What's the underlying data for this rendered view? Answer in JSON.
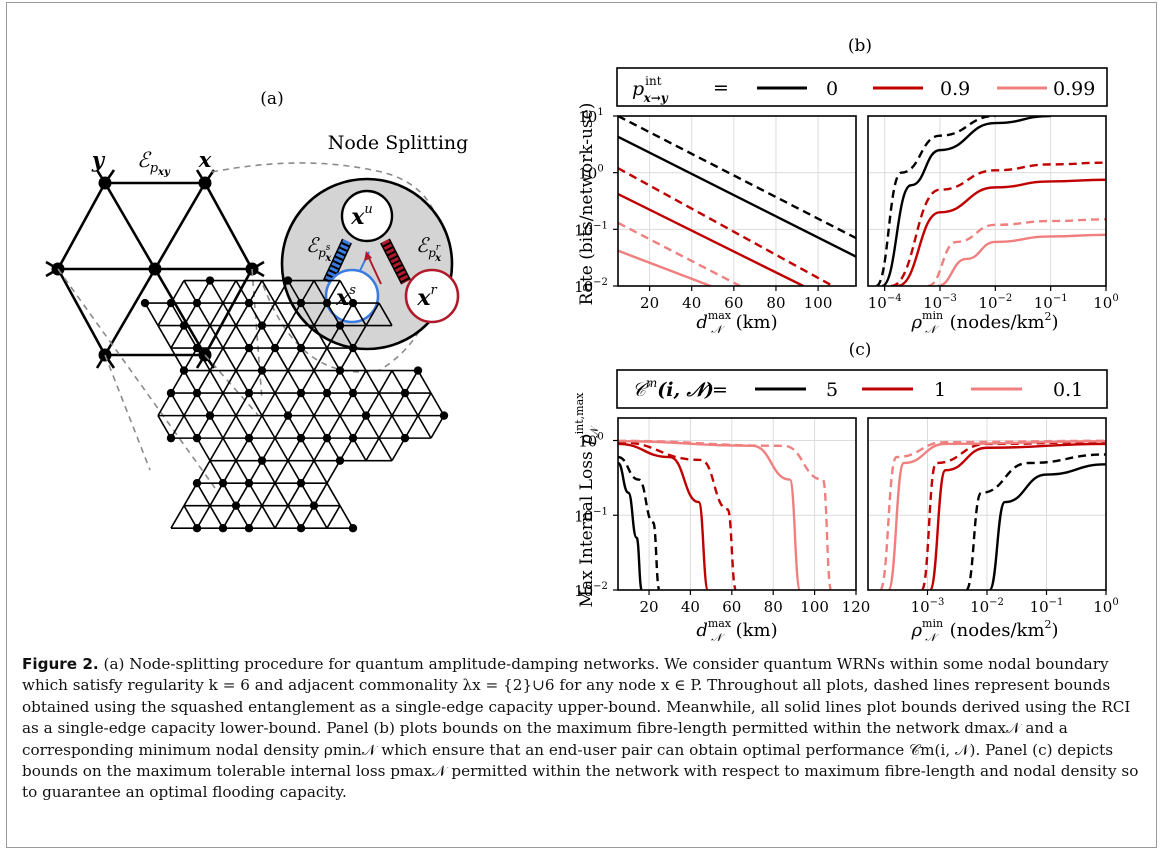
{
  "figure": {
    "panel_a": {
      "label": "(a)",
      "node_splitting_title": "Node Splitting",
      "node_y": "y",
      "edge_label": "ℰ",
      "edge_sub": "p",
      "edge_subsub": "xy",
      "node_x": "x",
      "x_u_base": "x",
      "x_u_sup": "u",
      "x_s_base": "x",
      "x_s_sup": "s",
      "x_r_base": "x",
      "x_r_sup": "r",
      "eps_s": "ℰ",
      "eps_s_sub": "p",
      "eps_s_subsup": "s",
      "eps_s_subsub": "x",
      "eps_r": "ℰ",
      "eps_r_sub": "p",
      "eps_r_subsup": "r",
      "eps_r_subsub": "x"
    },
    "panel_b": {
      "label": "(b)",
      "legend_symbol": "p",
      "legend_sup": "int",
      "legend_sub": "x→y",
      "legend_eq": "=",
      "legend_values": [
        "0",
        "0.9",
        "0.99"
      ],
      "ylabel": "Rate (bits/network-use)",
      "left_xlabel_sym": "d",
      "left_xlabel_sup": "max",
      "left_xlabel_sub": "𝒩",
      "left_xlabel_unit": "(km)",
      "right_xlabel_sym": "ρ",
      "right_xlabel_sup": "min",
      "right_xlabel_sub": "𝒩",
      "right_xlabel_unit": "(nodes/km",
      "right_xlabel_unit_sup": "2",
      "right_xlabel_unit_end": ")",
      "left_xticks": [
        "20",
        "40",
        "60",
        "80",
        "100"
      ],
      "y_ticks": [
        {
          "base": "10",
          "exp": "1"
        },
        {
          "base": "10",
          "exp": "0"
        },
        {
          "base": "10",
          "exp": "−1"
        },
        {
          "base": "10",
          "exp": "−2"
        }
      ],
      "right_xticks": [
        {
          "base": "10",
          "exp": "−4"
        },
        {
          "base": "10",
          "exp": "−3"
        },
        {
          "base": "10",
          "exp": "−2"
        },
        {
          "base": "10",
          "exp": "−1"
        },
        {
          "base": "10",
          "exp": "0"
        }
      ]
    },
    "panel_c": {
      "label": "(c)",
      "legend_symbol": "𝒞",
      "legend_sup": "m",
      "legend_args": "(i, 𝒩)",
      "legend_eq": "=",
      "legend_values": [
        "5",
        "1",
        "0.1"
      ],
      "ylabel": "Max Internal Loss",
      "ylabel_sym": "p",
      "ylabel_sup": "int,max",
      "ylabel_sub": "𝒩",
      "left_xlabel_sym": "d",
      "left_xlabel_sup": "max",
      "left_xlabel_sub": "𝒩",
      "left_xlabel_unit": "(km)",
      "right_xlabel_sym": "ρ",
      "right_xlabel_sup": "min",
      "right_xlabel_sub": "𝒩",
      "right_xlabel_unit": "(nodes/km",
      "right_xlabel_unit_sup": "2",
      "right_xlabel_unit_end": ")",
      "left_xticks": [
        "20",
        "40",
        "60",
        "80",
        "100",
        "120"
      ],
      "y_ticks": [
        {
          "base": "10",
          "exp": "0"
        },
        {
          "base": "10",
          "exp": "−1"
        },
        {
          "base": "10",
          "exp": "−2"
        }
      ],
      "right_xticks": [
        {
          "base": "10",
          "exp": "−3"
        },
        {
          "base": "10",
          "exp": "−2"
        },
        {
          "base": "10",
          "exp": "−1"
        },
        {
          "base": "10",
          "exp": "0"
        }
      ]
    },
    "colors": {
      "series_0": "#000000",
      "series_1": "#c00000",
      "series_2": "#f07f7f",
      "node_u_fill": "#ffffff",
      "node_s_stroke": "#3b7be0",
      "node_r_stroke": "#b01a2a",
      "split_bg": "#d4d4d4"
    }
  },
  "caption": {
    "lead": "Figure 2.",
    "text": "(a) Node-splitting procedure for quantum amplitude-damping networks. We consider quantum WRNs within some nodal boundary which satisfy regularity k = 6 and adjacent commonality λx = {2}∪6 for any node x ∈ P. Throughout all plots, dashed lines represent bounds obtained using the squashed entanglement as a single-edge capacity upper-bound. Meanwhile, all solid lines plot bounds derived using the RCI as a single-edge capacity lower-bound. Panel (b) plots bounds on the maximum fibre-length permitted within the network dmax𝒩 and a corresponding minimum nodal density ρmin𝒩 which ensure that an end-user pair can obtain optimal performance 𝒞m(i, 𝒩). Panel (c) depicts bounds on the maximum tolerable internal loss pmax𝒩 permitted within the network with respect to maximum fibre-length and nodal density so to guarantee an optimal flooding capacity."
  },
  "chart_data": [
    {
      "type": "line",
      "panel": "(b) left",
      "xlabel": "d_N^max (km)",
      "ylabel": "Rate (bits/network-use)",
      "log_y": true,
      "xlim": [
        5,
        118
      ],
      "ylim": [
        0.01,
        10
      ],
      "grid": true,
      "series": [
        {
          "name": "0",
          "style": "solid",
          "x": [
            5,
            118
          ],
          "y": [
            4.3,
            0.033
          ]
        },
        {
          "name": "0",
          "style": "dashed",
          "x": [
            5,
            118
          ],
          "y": [
            10,
            0.07
          ]
        },
        {
          "name": "0.9",
          "style": "solid",
          "x": [
            5,
            93
          ],
          "y": [
            0.42,
            0.01
          ]
        },
        {
          "name": "0.9",
          "style": "dashed",
          "x": [
            5,
            107
          ],
          "y": [
            1.2,
            0.01
          ]
        },
        {
          "name": "0.99",
          "style": "solid",
          "x": [
            5,
            49
          ],
          "y": [
            0.042,
            0.01
          ]
        },
        {
          "name": "0.99",
          "style": "dashed",
          "x": [
            5,
            63
          ],
          "y": [
            0.13,
            0.01
          ]
        }
      ]
    },
    {
      "type": "line",
      "panel": "(b) right",
      "xlabel": "rho_N^min (nodes/km^2)",
      "log_x": true,
      "log_y": true,
      "xlim": [
        5e-05,
        1
      ],
      "ylim": [
        0.01,
        10
      ],
      "grid": true,
      "series": [
        {
          "name": "0",
          "style": "solid",
          "x": [
            9e-05,
            0.0003,
            0.001,
            0.01,
            0.1
          ],
          "y": [
            0.01,
            0.6,
            2.5,
            7.5,
            10
          ]
        },
        {
          "name": "0",
          "style": "dashed",
          "x": [
            7e-05,
            0.0002,
            0.001,
            0.01
          ],
          "y": [
            0.01,
            1.0,
            4.5,
            10
          ]
        },
        {
          "name": "0.9",
          "style": "solid",
          "x": [
            0.00017,
            0.001,
            0.01,
            0.1,
            1
          ],
          "y": [
            0.01,
            0.2,
            0.55,
            0.7,
            0.75
          ]
        },
        {
          "name": "0.9",
          "style": "dashed",
          "x": [
            0.00013,
            0.001,
            0.01,
            0.1,
            1
          ],
          "y": [
            0.01,
            0.5,
            1.1,
            1.4,
            1.5
          ]
        },
        {
          "name": "0.99",
          "style": "solid",
          "x": [
            0.0009,
            0.003,
            0.01,
            0.1,
            1
          ],
          "y": [
            0.01,
            0.03,
            0.06,
            0.075,
            0.08
          ]
        },
        {
          "name": "0.99",
          "style": "dashed",
          "x": [
            0.0006,
            0.002,
            0.01,
            0.1,
            1
          ],
          "y": [
            0.01,
            0.06,
            0.12,
            0.14,
            0.15
          ]
        }
      ]
    },
    {
      "type": "line",
      "panel": "(c) left",
      "xlabel": "d_N^max (km)",
      "ylabel": "Max Internal Loss p_N^int,max",
      "log_y": true,
      "xlim": [
        5,
        120
      ],
      "ylim": [
        0.01,
        2
      ],
      "grid": true,
      "series": [
        {
          "name": "5",
          "style": "solid",
          "x": [
            5,
            10,
            14,
            16.5
          ],
          "y": [
            0.5,
            0.2,
            0.05,
            0.01
          ]
        },
        {
          "name": "5",
          "style": "dashed",
          "x": [
            5,
            15,
            22,
            25
          ],
          "y": [
            0.6,
            0.3,
            0.08,
            0.01
          ]
        },
        {
          "name": "1",
          "style": "solid",
          "x": [
            5,
            30,
            44,
            48.5
          ],
          "y": [
            0.9,
            0.6,
            0.15,
            0.01
          ]
        },
        {
          "name": "1",
          "style": "dashed",
          "x": [
            5,
            45,
            58,
            62
          ],
          "y": [
            0.95,
            0.55,
            0.12,
            0.01
          ]
        },
        {
          "name": "0.1",
          "style": "solid",
          "x": [
            5,
            70,
            88,
            93
          ],
          "y": [
            0.98,
            0.85,
            0.3,
            0.01
          ]
        },
        {
          "name": "0.1",
          "style": "dashed",
          "x": [
            5,
            85,
            104,
            108
          ],
          "y": [
            0.99,
            0.85,
            0.3,
            0.01
          ]
        }
      ]
    },
    {
      "type": "line",
      "panel": "(c) right",
      "xlabel": "rho_N^min (nodes/km^2)",
      "log_x": true,
      "log_y": true,
      "xlim": [
        0.0001,
        1
      ],
      "ylim": [
        0.01,
        2
      ],
      "grid": true,
      "series": [
        {
          "name": "5",
          "style": "solid",
          "x": [
            0.011,
            0.02,
            0.1,
            1
          ],
          "y": [
            0.01,
            0.15,
            0.35,
            0.48
          ]
        },
        {
          "name": "5",
          "style": "dashed",
          "x": [
            0.0045,
            0.008,
            0.05,
            1
          ],
          "y": [
            0.01,
            0.2,
            0.5,
            0.65
          ]
        },
        {
          "name": "1",
          "style": "solid",
          "x": [
            0.0011,
            0.002,
            0.01,
            1
          ],
          "y": [
            0.01,
            0.4,
            0.8,
            0.9
          ]
        },
        {
          "name": "1",
          "style": "dashed",
          "x": [
            0.0008,
            0.0014,
            0.01,
            1
          ],
          "y": [
            0.01,
            0.5,
            0.9,
            0.95
          ]
        },
        {
          "name": "0.1",
          "style": "solid",
          "x": [
            0.00022,
            0.0004,
            0.002,
            1
          ],
          "y": [
            0.01,
            0.5,
            0.9,
            0.98
          ]
        },
        {
          "name": "0.1",
          "style": "dashed",
          "x": [
            0.00016,
            0.0003,
            0.002,
            1
          ],
          "y": [
            0.01,
            0.6,
            0.95,
            0.99
          ]
        }
      ]
    }
  ]
}
